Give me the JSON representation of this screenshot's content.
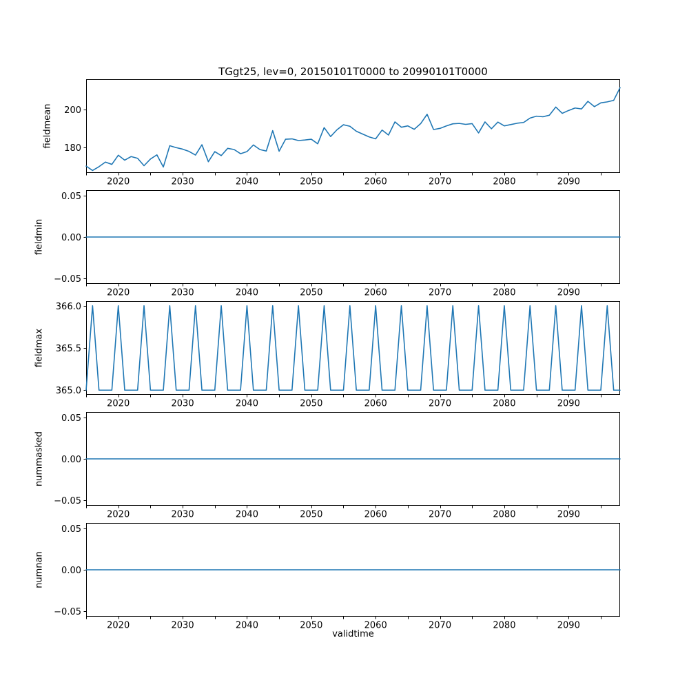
{
  "figure": {
    "title": "TGgt25, lev=0, 20150101T0000 to 20990101T0000",
    "background_color": "#ffffff",
    "line_color": "#1f77b4",
    "text_color": "#000000"
  },
  "chart_data": {
    "type": "line",
    "layout": "5 vertically stacked subplots sharing the x axis, no grid, no legend",
    "grid": false,
    "legend": false,
    "xlabel": "validtime",
    "xlim": [
      2015,
      2098
    ],
    "xticks_major": [
      2020,
      2030,
      2040,
      2050,
      2060,
      2070,
      2080,
      2090
    ],
    "xtick_labels": [
      "2020",
      "2030",
      "2040",
      "2050",
      "2060",
      "2070",
      "2080",
      "2090"
    ],
    "xticks_minor": [
      2015,
      2025,
      2035,
      2045,
      2055,
      2065,
      2075,
      2085,
      2095
    ],
    "x": [
      2015,
      2016,
      2017,
      2018,
      2019,
      2020,
      2021,
      2022,
      2023,
      2024,
      2025,
      2026,
      2027,
      2028,
      2029,
      2030,
      2031,
      2032,
      2033,
      2034,
      2035,
      2036,
      2037,
      2038,
      2039,
      2040,
      2041,
      2042,
      2043,
      2044,
      2045,
      2046,
      2047,
      2048,
      2049,
      2050,
      2051,
      2052,
      2053,
      2054,
      2055,
      2056,
      2057,
      2058,
      2059,
      2060,
      2061,
      2062,
      2063,
      2064,
      2065,
      2066,
      2067,
      2068,
      2069,
      2070,
      2071,
      2072,
      2073,
      2074,
      2075,
      2076,
      2077,
      2078,
      2079,
      2080,
      2081,
      2082,
      2083,
      2084,
      2085,
      2086,
      2087,
      2088,
      2089,
      2090,
      2091,
      2092,
      2093,
      2094,
      2095,
      2096,
      2097,
      2098
    ],
    "subplots": [
      {
        "name": "fieldmean",
        "ylabel": "fieldmean",
        "ylim": [
          166.7,
          215.9
        ],
        "yticks": [
          200,
          180
        ],
        "ytick_labels": [
          "200",
          "180"
        ],
        "values": [
          170.3,
          168.0,
          170.0,
          172.4,
          171.2,
          176.0,
          173.4,
          175.3,
          174.4,
          170.5,
          174.0,
          176.2,
          169.8,
          181.0,
          180.0,
          179.2,
          178.0,
          176.1,
          181.5,
          172.6,
          177.9,
          175.8,
          179.6,
          179.0,
          176.8,
          177.9,
          181.4,
          179.0,
          178.2,
          188.9,
          178.1,
          184.4,
          184.6,
          183.7,
          184.0,
          184.4,
          182.0,
          190.5,
          185.8,
          189.4,
          192.0,
          191.2,
          188.6,
          187.1,
          185.6,
          184.6,
          189.2,
          186.6,
          193.5,
          190.7,
          191.4,
          189.6,
          192.6,
          197.5,
          189.5,
          190.1,
          191.4,
          192.5,
          192.7,
          192.2,
          192.6,
          187.7,
          193.5,
          189.9,
          193.4,
          191.4,
          192.1,
          192.8,
          193.2,
          195.5,
          196.5,
          196.2,
          197.0,
          201.3,
          198.0,
          199.5,
          200.8,
          200.3,
          204.3,
          201.5,
          203.5,
          204.0,
          204.8,
          211.5
        ]
      },
      {
        "name": "fieldmin",
        "ylabel": "fieldmin",
        "ylim": [
          -0.057,
          0.057
        ],
        "yticks": [
          0.05,
          0.0,
          -0.05
        ],
        "ytick_labels": [
          "0.05",
          "0.00",
          "−0.05"
        ],
        "values": [
          0,
          0,
          0,
          0,
          0,
          0,
          0,
          0,
          0,
          0,
          0,
          0,
          0,
          0,
          0,
          0,
          0,
          0,
          0,
          0,
          0,
          0,
          0,
          0,
          0,
          0,
          0,
          0,
          0,
          0,
          0,
          0,
          0,
          0,
          0,
          0,
          0,
          0,
          0,
          0,
          0,
          0,
          0,
          0,
          0,
          0,
          0,
          0,
          0,
          0,
          0,
          0,
          0,
          0,
          0,
          0,
          0,
          0,
          0,
          0,
          0,
          0,
          0,
          0,
          0,
          0,
          0,
          0,
          0,
          0,
          0,
          0,
          0,
          0,
          0,
          0,
          0,
          0,
          0,
          0,
          0,
          0,
          0,
          0
        ]
      },
      {
        "name": "fieldmax",
        "ylabel": "fieldmax",
        "ylim": [
          364.945,
          366.055
        ],
        "yticks": [
          366.0,
          365.5,
          365.0
        ],
        "ytick_labels": [
          "366.0",
          "365.5",
          "365.0"
        ],
        "values": [
          365,
          366,
          365,
          365,
          365,
          366,
          365,
          365,
          365,
          366,
          365,
          365,
          365,
          366,
          365,
          365,
          365,
          366,
          365,
          365,
          365,
          366,
          365,
          365,
          365,
          366,
          365,
          365,
          365,
          366,
          365,
          365,
          365,
          366,
          365,
          365,
          365,
          366,
          365,
          365,
          365,
          366,
          365,
          365,
          365,
          366,
          365,
          365,
          365,
          366,
          365,
          365,
          365,
          366,
          365,
          365,
          365,
          366,
          365,
          365,
          365,
          366,
          365,
          365,
          365,
          366,
          365,
          365,
          365,
          366,
          365,
          365,
          365,
          366,
          365,
          365,
          365,
          366,
          365,
          365,
          365,
          366,
          365,
          365
        ]
      },
      {
        "name": "nummasked",
        "ylabel": "nummasked",
        "ylim": [
          -0.057,
          0.057
        ],
        "yticks": [
          0.05,
          0.0,
          -0.05
        ],
        "ytick_labels": [
          "0.05",
          "0.00",
          "−0.05"
        ],
        "values": [
          0,
          0,
          0,
          0,
          0,
          0,
          0,
          0,
          0,
          0,
          0,
          0,
          0,
          0,
          0,
          0,
          0,
          0,
          0,
          0,
          0,
          0,
          0,
          0,
          0,
          0,
          0,
          0,
          0,
          0,
          0,
          0,
          0,
          0,
          0,
          0,
          0,
          0,
          0,
          0,
          0,
          0,
          0,
          0,
          0,
          0,
          0,
          0,
          0,
          0,
          0,
          0,
          0,
          0,
          0,
          0,
          0,
          0,
          0,
          0,
          0,
          0,
          0,
          0,
          0,
          0,
          0,
          0,
          0,
          0,
          0,
          0,
          0,
          0,
          0,
          0,
          0,
          0,
          0,
          0,
          0,
          0,
          0,
          0
        ]
      },
      {
        "name": "numnan",
        "ylabel": "numnan",
        "ylim": [
          -0.057,
          0.057
        ],
        "yticks": [
          0.05,
          0.0,
          -0.05
        ],
        "ytick_labels": [
          "0.05",
          "0.00",
          "−0.05"
        ],
        "values": [
          0,
          0,
          0,
          0,
          0,
          0,
          0,
          0,
          0,
          0,
          0,
          0,
          0,
          0,
          0,
          0,
          0,
          0,
          0,
          0,
          0,
          0,
          0,
          0,
          0,
          0,
          0,
          0,
          0,
          0,
          0,
          0,
          0,
          0,
          0,
          0,
          0,
          0,
          0,
          0,
          0,
          0,
          0,
          0,
          0,
          0,
          0,
          0,
          0,
          0,
          0,
          0,
          0,
          0,
          0,
          0,
          0,
          0,
          0,
          0,
          0,
          0,
          0,
          0,
          0,
          0,
          0,
          0,
          0,
          0,
          0,
          0,
          0,
          0,
          0,
          0,
          0,
          0,
          0,
          0,
          0,
          0,
          0,
          0
        ]
      }
    ]
  }
}
